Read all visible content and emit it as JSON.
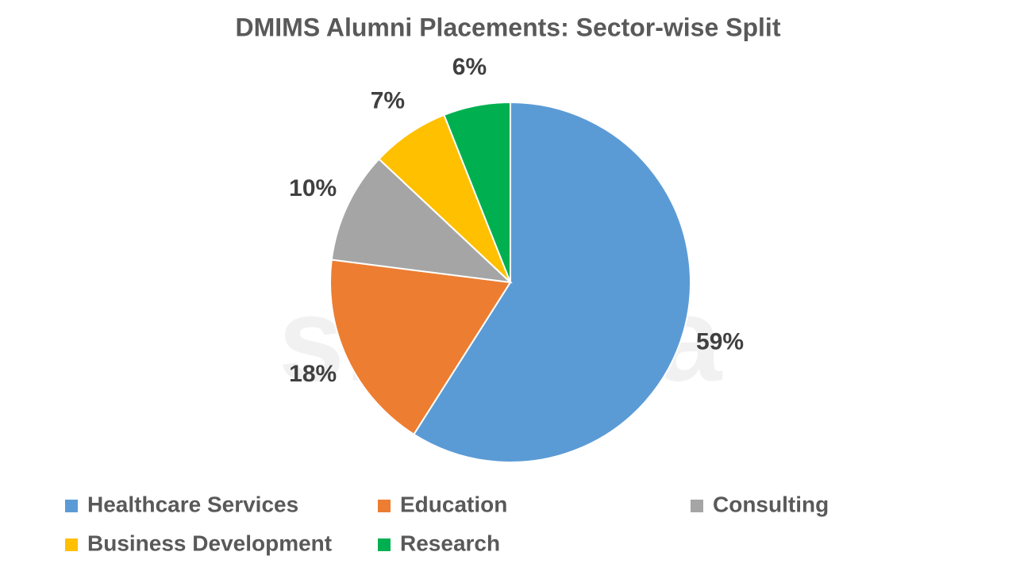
{
  "chart_data": {
    "type": "pie",
    "title": "DMIMS Alumni Placements: Sector-wise Split",
    "watermark": "shiksha",
    "categories": [
      "Healthcare Services",
      "Education",
      "Consulting",
      "Business Development",
      "Research"
    ],
    "values": [
      59,
      18,
      10,
      7,
      6
    ],
    "value_labels": [
      "59%",
      "18%",
      "10%",
      "7%",
      "6%"
    ],
    "colors": [
      "#5b9bd5",
      "#ed7d31",
      "#a5a5a5",
      "#ffc000",
      "#00b050"
    ],
    "legend": "bottom"
  }
}
